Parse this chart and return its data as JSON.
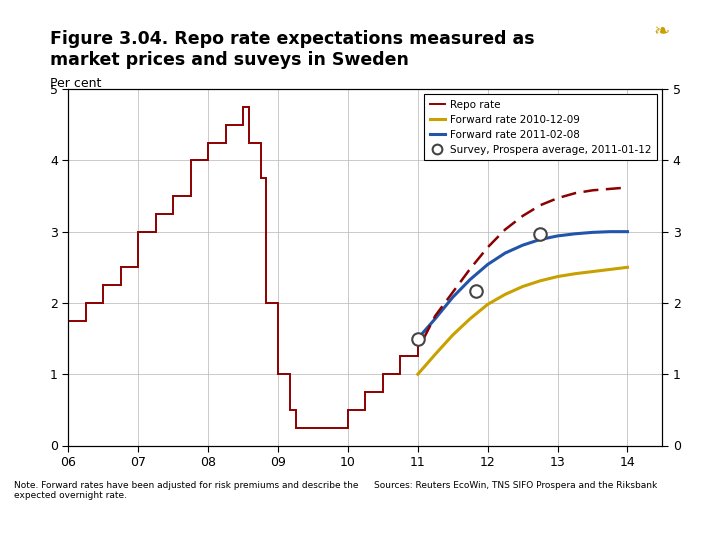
{
  "title_line1": "Figure 3.04. Repo rate expectations measured as",
  "title_line2": "market prices and suveys in Sweden",
  "subtitle": "Per cent",
  "xlim": [
    2006,
    2014.5
  ],
  "ylim": [
    0,
    5
  ],
  "yticks": [
    0,
    1,
    2,
    3,
    4,
    5
  ],
  "xticks": [
    2006,
    2007,
    2008,
    2009,
    2010,
    2011,
    2012,
    2013,
    2014
  ],
  "xticklabels": [
    "06",
    "07",
    "08",
    "09",
    "10",
    "11",
    "12",
    "13",
    "14"
  ],
  "repo_color": "#8B0000",
  "forward_2010_color": "#C8A000",
  "forward_2011_color": "#2255AA",
  "riksbank_dashed_color": "#8B0000",
  "survey_color": "#555555",
  "note_left": "Note. Forward rates have been adjusted for risk premiums and describe the\nexpected overnight rate.",
  "note_right": "Sources: Reuters EcoWin, TNS SIFO Prospera and the Riksbank",
  "bg_color": "#FFFFFF",
  "grid_color": "#BBBBBB",
  "repo_rate_data": [
    [
      2006.0,
      1.5
    ],
    [
      2006.0,
      1.75
    ],
    [
      2006.25,
      1.75
    ],
    [
      2006.25,
      2.0
    ],
    [
      2006.5,
      2.0
    ],
    [
      2006.5,
      2.25
    ],
    [
      2006.75,
      2.25
    ],
    [
      2006.75,
      2.5
    ],
    [
      2007.0,
      2.5
    ],
    [
      2007.0,
      3.0
    ],
    [
      2007.25,
      3.0
    ],
    [
      2007.25,
      3.25
    ],
    [
      2007.5,
      3.25
    ],
    [
      2007.5,
      3.5
    ],
    [
      2007.75,
      3.5
    ],
    [
      2007.75,
      4.0
    ],
    [
      2008.0,
      4.0
    ],
    [
      2008.0,
      4.25
    ],
    [
      2008.25,
      4.25
    ],
    [
      2008.25,
      4.5
    ],
    [
      2008.5,
      4.5
    ],
    [
      2008.5,
      4.75
    ],
    [
      2008.583,
      4.75
    ],
    [
      2008.583,
      4.25
    ],
    [
      2008.75,
      4.25
    ],
    [
      2008.75,
      3.75
    ],
    [
      2008.833,
      3.75
    ],
    [
      2008.833,
      2.0
    ],
    [
      2009.0,
      2.0
    ],
    [
      2009.0,
      1.0
    ],
    [
      2009.167,
      1.0
    ],
    [
      2009.167,
      0.5
    ],
    [
      2009.25,
      0.5
    ],
    [
      2009.25,
      0.25
    ],
    [
      2010.0,
      0.25
    ],
    [
      2010.0,
      0.5
    ],
    [
      2010.25,
      0.5
    ],
    [
      2010.25,
      0.75
    ],
    [
      2010.5,
      0.75
    ],
    [
      2010.5,
      1.0
    ],
    [
      2010.75,
      1.0
    ],
    [
      2010.75,
      1.25
    ],
    [
      2011.0,
      1.25
    ],
    [
      2011.0,
      1.5
    ],
    [
      2011.083,
      1.5
    ]
  ],
  "forward_2010_data": [
    [
      2011.0,
      1.0
    ],
    [
      2011.25,
      1.28
    ],
    [
      2011.5,
      1.55
    ],
    [
      2011.75,
      1.78
    ],
    [
      2012.0,
      1.98
    ],
    [
      2012.25,
      2.12
    ],
    [
      2012.5,
      2.23
    ],
    [
      2012.75,
      2.31
    ],
    [
      2013.0,
      2.37
    ],
    [
      2013.25,
      2.41
    ],
    [
      2013.5,
      2.44
    ],
    [
      2013.75,
      2.47
    ],
    [
      2014.0,
      2.5
    ]
  ],
  "forward_2011_data": [
    [
      2011.0,
      1.5
    ],
    [
      2011.25,
      1.78
    ],
    [
      2011.5,
      2.08
    ],
    [
      2011.75,
      2.33
    ],
    [
      2012.0,
      2.54
    ],
    [
      2012.25,
      2.7
    ],
    [
      2012.5,
      2.81
    ],
    [
      2012.75,
      2.89
    ],
    [
      2013.0,
      2.94
    ],
    [
      2013.25,
      2.97
    ],
    [
      2013.5,
      2.99
    ],
    [
      2013.75,
      3.0
    ],
    [
      2014.0,
      3.0
    ]
  ],
  "riksbank_forecast_data": [
    [
      2011.083,
      1.5
    ],
    [
      2011.25,
      1.82
    ],
    [
      2011.5,
      2.15
    ],
    [
      2011.75,
      2.48
    ],
    [
      2012.0,
      2.78
    ],
    [
      2012.25,
      3.03
    ],
    [
      2012.5,
      3.22
    ],
    [
      2012.75,
      3.37
    ],
    [
      2013.0,
      3.47
    ],
    [
      2013.25,
      3.54
    ],
    [
      2013.5,
      3.58
    ],
    [
      2013.75,
      3.6
    ],
    [
      2014.0,
      3.62
    ]
  ],
  "survey_data": [
    [
      2011.0,
      1.5
    ],
    [
      2011.833,
      2.17
    ],
    [
      2012.75,
      2.97
    ]
  ],
  "logo_color": "#003087",
  "footer_bar_color": "#003399"
}
